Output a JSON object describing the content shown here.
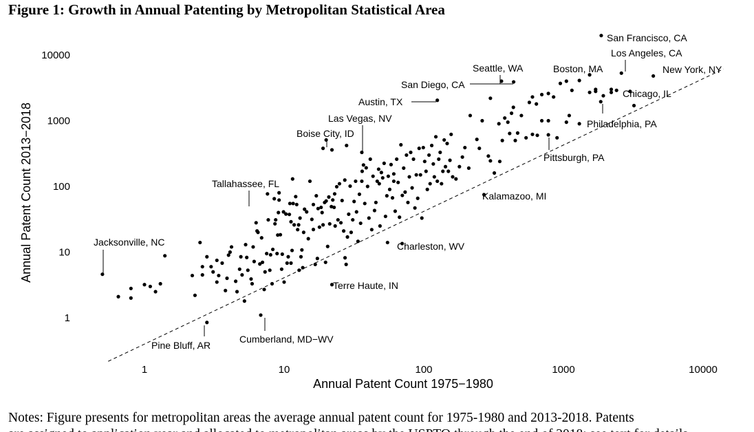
{
  "figure": {
    "title": "Figure 1: Growth in Annual Patenting by Metropolitan Statistical Area",
    "notes_line1": "Notes: Figure presents for metropolitan areas the average annual patent count for 1975-1980 and 2013-2018. Patents",
    "notes_line2": "are assigned to application year and allocated to metropolitan areas by the USPTO through the end of 2018; see text for details."
  },
  "chart_data": {
    "type": "scatter",
    "title": "Figure 1: Growth in Annual Patenting by Metropolitan Statistical Area",
    "xlabel": "Annual Patent Count 1975−1980",
    "ylabel": "Annual Patent Count 2013−2018",
    "x_scale": "log10",
    "y_scale": "log10",
    "xlim": [
      0.5,
      15000
    ],
    "ylim": [
      0.4,
      25000
    ],
    "x_ticks": [
      1,
      10,
      100,
      1000,
      10000
    ],
    "x_tick_labels": [
      "1",
      "10",
      "100",
      "1000",
      "10000"
    ],
    "y_ticks": [
      1,
      10,
      100,
      1000,
      10000
    ],
    "y_tick_labels": [
      "1",
      "10",
      "100",
      "1000",
      "10000"
    ],
    "grid": false,
    "reference_line": {
      "style": "dashed",
      "slope_log": 1.01,
      "intercept_log": -0.4,
      "from_x": 0.55,
      "to_x": 14000
    },
    "labeled_points": [
      {
        "name": "San Francisco, CA",
        "x": 1865,
        "y": 19800
      },
      {
        "name": "Los Angeles, CA",
        "x": 2600,
        "y": 5300
      },
      {
        "name": "New York, NY",
        "x": 4400,
        "y": 4800
      },
      {
        "name": "Boston, MA",
        "x": 1540,
        "y": 5000
      },
      {
        "name": "Seattle, WA",
        "x": 440,
        "y": 3900
      },
      {
        "name": "San Diego, CA",
        "x": 360,
        "y": 4000
      },
      {
        "name": "Chicago, IL",
        "x": 2200,
        "y": 2700
      },
      {
        "name": "Philadelphia, PA",
        "x": 1850,
        "y": 1950
      },
      {
        "name": "Austin, TX",
        "x": 125,
        "y": 2050
      },
      {
        "name": "Las Vegas, NV",
        "x": 36,
        "y": 330
      },
      {
        "name": "Boise City, ID",
        "x": 20,
        "y": 510
      },
      {
        "name": "Pittsburgh, PA",
        "x": 780,
        "y": 610
      },
      {
        "name": "Tallahassee, FL",
        "x": 11,
        "y": 55
      },
      {
        "name": "Kalamazoo, MI",
        "x": 270,
        "y": 75
      },
      {
        "name": "Jacksonville, NC",
        "x": 0.5,
        "y": 4.6
      },
      {
        "name": "Charleston, WV",
        "x": 70,
        "y": 13.5
      },
      {
        "name": "Terre Haute, IN",
        "x": 22,
        "y": 3.2
      },
      {
        "name": "Pine Bluff, AR",
        "x": 2.8,
        "y": 0.85
      },
      {
        "name": "Cumberland, MD−WV",
        "x": 6.8,
        "y": 1.1
      }
    ],
    "points": [
      [
        0.65,
        2.1
      ],
      [
        0.8,
        2.8
      ],
      [
        0.8,
        2.0
      ],
      [
        1.0,
        3.2
      ],
      [
        1.1,
        3.0
      ],
      [
        1.2,
        2.5
      ],
      [
        1.3,
        3.3
      ],
      [
        1.4,
        8.8
      ],
      [
        2.3,
        2.2
      ],
      [
        2.5,
        14
      ],
      [
        2.6,
        4.5
      ],
      [
        2.6,
        6
      ],
      [
        2.8,
        8.5
      ],
      [
        3.0,
        6.0
      ],
      [
        3.1,
        5.0
      ],
      [
        3.3,
        3.5
      ],
      [
        3.4,
        4.4
      ],
      [
        3.6,
        6.8
      ],
      [
        3.8,
        2.6
      ],
      [
        4.0,
        9
      ],
      [
        4.2,
        12
      ],
      [
        4.5,
        3.6
      ],
      [
        4.8,
        5.5
      ],
      [
        4.9,
        8.5
      ],
      [
        5.0,
        4.5
      ],
      [
        5.2,
        1.8
      ],
      [
        5.3,
        13
      ],
      [
        5.5,
        5.3
      ],
      [
        5.8,
        3.9
      ],
      [
        5.9,
        3.3
      ],
      [
        6.0,
        12
      ],
      [
        6.1,
        7.2
      ],
      [
        6.3,
        28
      ],
      [
        6.5,
        20
      ],
      [
        6.7,
        6.6
      ],
      [
        6.9,
        16.5
      ],
      [
        7.0,
        7.0
      ],
      [
        7.2,
        2.7
      ],
      [
        7.3,
        5
      ],
      [
        7.5,
        9.5
      ],
      [
        7.7,
        31
      ],
      [
        7.9,
        5.3
      ],
      [
        8.0,
        9.1
      ],
      [
        8.2,
        3.3
      ],
      [
        8.3,
        11
      ],
      [
        8.5,
        65
      ],
      [
        8.7,
        31
      ],
      [
        8.9,
        9.5
      ],
      [
        9.0,
        18.2
      ],
      [
        9.1,
        40
      ],
      [
        9.2,
        62
      ],
      [
        9.4,
        18.4
      ],
      [
        9.6,
        5.5
      ],
      [
        9.7,
        9.3
      ],
      [
        9.9,
        41
      ],
      [
        10.0,
        3.5
      ],
      [
        10.3,
        38
      ],
      [
        10.5,
        6.8
      ],
      [
        10.7,
        8.5
      ],
      [
        10.9,
        37.5
      ],
      [
        11.2,
        29
      ],
      [
        11.4,
        10.6
      ],
      [
        11.6,
        55
      ],
      [
        11.8,
        26
      ],
      [
        11.2,
        6.8
      ],
      [
        12.1,
        70
      ],
      [
        12.3,
        53
      ],
      [
        12.5,
        22
      ],
      [
        12.7,
        26
      ],
      [
        13.0,
        33
      ],
      [
        13.2,
        8.5
      ],
      [
        13.4,
        10.8
      ],
      [
        13.6,
        5.8
      ],
      [
        14.0,
        45
      ],
      [
        14.5,
        41
      ],
      [
        14.9,
        16
      ],
      [
        15.3,
        120
      ],
      [
        15.8,
        31.5
      ],
      [
        16.2,
        22.1
      ],
      [
        16.7,
        6.5
      ],
      [
        17.0,
        72
      ],
      [
        17.5,
        46
      ],
      [
        17.9,
        24
      ],
      [
        18.4,
        48
      ],
      [
        18.7,
        40
      ],
      [
        19.0,
        26
      ],
      [
        19.5,
        57
      ],
      [
        19.8,
        7
      ],
      [
        20,
        60
      ],
      [
        20.5,
        12.2
      ],
      [
        20.9,
        69
      ],
      [
        21.2,
        26.9
      ],
      [
        21.8,
        49.3
      ],
      [
        22.3,
        62.2
      ],
      [
        22.8,
        48
      ],
      [
        23.2,
        25
      ],
      [
        23.8,
        99
      ],
      [
        24.3,
        31
      ],
      [
        24.9,
        110
      ],
      [
        25.5,
        28
      ],
      [
        26.0,
        61
      ],
      [
        26.7,
        21
      ],
      [
        27.2,
        125
      ],
      [
        27.8,
        6.5
      ],
      [
        28.4,
        17
      ],
      [
        29.0,
        37.8
      ],
      [
        29.7,
        101
      ],
      [
        30.2,
        20
      ],
      [
        31.0,
        31
      ],
      [
        31.7,
        59
      ],
      [
        32.5,
        120
      ],
      [
        33.0,
        41
      ],
      [
        33.8,
        14.6
      ],
      [
        34.6,
        76
      ],
      [
        35.3,
        27.5
      ],
      [
        36.2,
        170
      ],
      [
        37.0,
        212
      ],
      [
        37.8,
        55
      ],
      [
        38.7,
        192
      ],
      [
        39.6,
        100
      ],
      [
        40.5,
        33
      ],
      [
        41.4,
        260
      ],
      [
        42.4,
        22
      ],
      [
        43.3,
        143
      ],
      [
        44.4,
        43
      ],
      [
        45.4,
        57
      ],
      [
        46.4,
        120
      ],
      [
        47.5,
        183
      ],
      [
        48.6,
        25
      ],
      [
        49.7,
        163
      ],
      [
        50.8,
        135
      ],
      [
        52.0,
        225
      ],
      [
        53.2,
        35
      ],
      [
        54.4,
        72
      ],
      [
        55.7,
        143
      ],
      [
        57.0,
        90
      ],
      [
        58.3,
        215
      ],
      [
        59.7,
        67
      ],
      [
        61.0,
        155
      ],
      [
        62.4,
        42
      ],
      [
        64.0,
        260
      ],
      [
        65.5,
        115
      ],
      [
        67.0,
        34
      ],
      [
        68.6,
        430
      ],
      [
        70.2,
        73
      ],
      [
        71.8,
        190
      ],
      [
        73.5,
        82
      ],
      [
        75.2,
        300
      ],
      [
        77.0,
        57
      ],
      [
        78.8,
        140
      ],
      [
        80.6,
        330
      ],
      [
        82.5,
        95
      ],
      [
        84.4,
        260
      ],
      [
        86.4,
        47
      ],
      [
        88.4,
        150
      ],
      [
        90.5,
        66
      ],
      [
        92.6,
        380
      ],
      [
        94.7,
        150
      ],
      [
        96.9,
        33
      ],
      [
        99.2,
        390
      ],
      [
        101.5,
        240
      ],
      [
        103.8,
        170
      ],
      [
        106,
        90
      ],
      [
        109,
        300
      ],
      [
        111,
        110
      ],
      [
        114,
        420
      ],
      [
        117,
        220
      ],
      [
        119,
        140
      ],
      [
        122,
        570
      ],
      [
        125,
        120
      ],
      [
        128,
        260
      ],
      [
        131,
        330
      ],
      [
        134,
        110
      ],
      [
        137,
        170
      ],
      [
        140,
        510
      ],
      [
        143,
        200
      ],
      [
        147,
        450
      ],
      [
        150,
        170
      ],
      [
        154,
        250
      ],
      [
        157,
        620
      ],
      [
        161,
        140
      ],
      [
        170,
        130
      ],
      [
        180,
        200
      ],
      [
        189,
        280
      ],
      [
        197,
        390
      ],
      [
        210,
        190
      ],
      [
        215,
        1200
      ],
      [
        240,
        520
      ],
      [
        250,
        380
      ],
      [
        262,
        1000
      ],
      [
        290,
        290
      ],
      [
        300,
        245
      ],
      [
        320,
        160
      ],
      [
        345,
        900
      ],
      [
        365,
        500
      ],
      [
        380,
        1100
      ],
      [
        400,
        950
      ],
      [
        412,
        640
      ],
      [
        425,
        1300
      ],
      [
        438,
        1600
      ],
      [
        452,
        500
      ],
      [
        470,
        650
      ],
      [
        500,
        1200
      ],
      [
        540,
        550
      ],
      [
        570,
        1900
      ],
      [
        600,
        2300
      ],
      [
        640,
        1800
      ],
      [
        700,
        2500
      ],
      [
        780,
        2600
      ],
      [
        850,
        2300
      ],
      [
        1050,
        4000
      ],
      [
        1150,
        2900
      ],
      [
        1300,
        4100
      ],
      [
        1540,
        2700
      ],
      [
        1700,
        3000
      ],
      [
        1930,
        2400
      ],
      [
        2200,
        3000
      ],
      [
        2400,
        2900
      ],
      [
        3000,
        2800
      ],
      [
        3200,
        1700
      ],
      [
        650,
        600
      ],
      [
        700,
        1000
      ],
      [
        900,
        550
      ],
      [
        1100,
        1200
      ],
      [
        1300,
        900
      ],
      [
        1700,
        2800
      ],
      [
        1050,
        950
      ],
      [
        950,
        3700
      ],
      [
        350,
        240
      ],
      [
        300,
        2200
      ],
      [
        600,
        620
      ],
      [
        780,
        1000
      ],
      [
        28,
        420
      ],
      [
        22,
        360
      ],
      [
        19,
        380
      ],
      [
        11.5,
        130
      ],
      [
        7.6,
        77
      ],
      [
        4.6,
        2.5
      ],
      [
        3.3,
        7.5
      ],
      [
        2.2,
        4.4
      ],
      [
        6.4,
        21
      ],
      [
        9.2,
        80
      ],
      [
        13.8,
        20
      ],
      [
        17.3,
        8
      ],
      [
        27.3,
        8.2
      ],
      [
        48,
        110
      ],
      [
        55,
        14
      ],
      [
        61,
        120
      ],
      [
        36,
        120
      ],
      [
        23,
        77
      ],
      [
        16.2,
        53
      ],
      [
        12.8,
        5.3
      ],
      [
        8.6,
        27
      ],
      [
        5.4,
        8.3
      ],
      [
        3.9,
        4
      ],
      [
        4.1,
        10
      ]
    ]
  }
}
